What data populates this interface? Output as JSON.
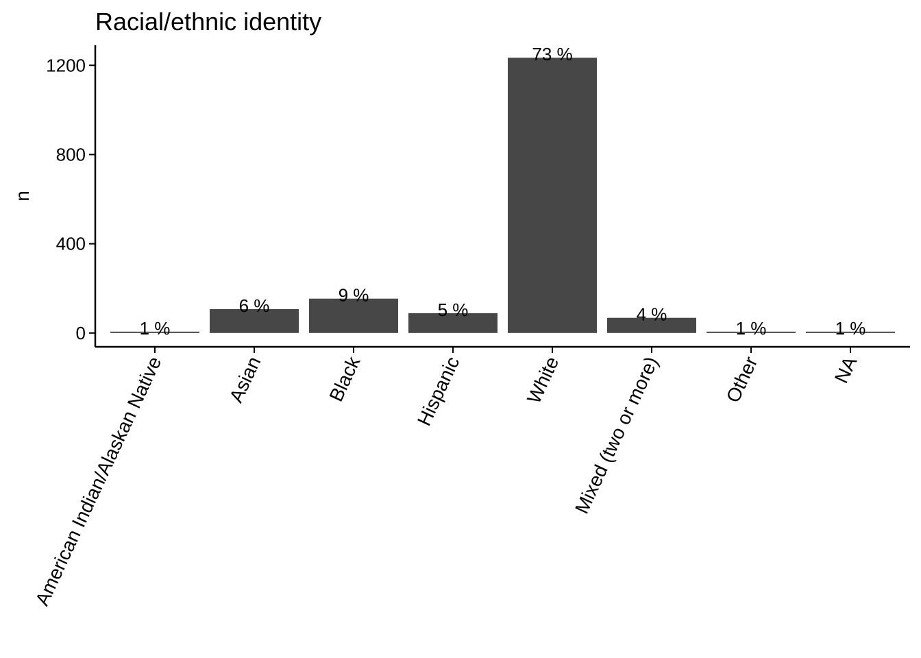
{
  "chart_data": {
    "type": "bar",
    "title": "Racial/ethnic identity",
    "xlabel": "",
    "ylabel": "n",
    "ylim": [
      -62,
      1290
    ],
    "yticks": [
      0,
      400,
      800,
      1200
    ],
    "grid": false,
    "bar_color": "#474747",
    "categories": [
      "American Indian/Alaskan Native",
      "Asian",
      "Black",
      "Hispanic",
      "White",
      "Mixed (two or more)",
      "Other",
      "NA"
    ],
    "values": [
      6,
      107,
      154,
      89,
      1234,
      68,
      6,
      6
    ],
    "labels": [
      "1 %",
      "6 %",
      "9 %",
      "5 %",
      "73 %",
      "4 %",
      "1 %",
      "1 %"
    ]
  }
}
